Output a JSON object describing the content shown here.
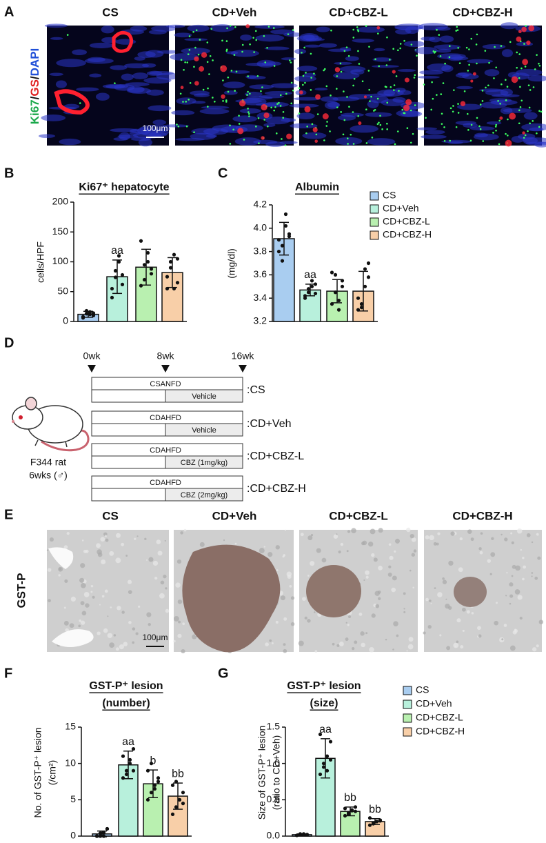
{
  "panel_labels": [
    "A",
    "B",
    "C",
    "D",
    "E",
    "F",
    "G"
  ],
  "panel_a": {
    "columns": [
      "CS",
      "CD+Veh",
      "CD+CBZ-L",
      "CD+CBZ-H"
    ],
    "stain_label": [
      "Ki67",
      "/",
      "GS",
      "/",
      "DAPI"
    ],
    "scale_bar": "100μm"
  },
  "panel_d": {
    "timepoints": [
      "0wk",
      "8wk",
      "16wk"
    ],
    "groups": [
      {
        "diet": "CSANFD",
        "treatment": "Vehicle",
        "label": ":CS"
      },
      {
        "diet": "CDAHFD",
        "treatment": "Vehicle",
        "label": ":CD+Veh"
      },
      {
        "diet": "CDAHFD",
        "treatment": "CBZ (1mg/kg)",
        "label": ":CD+CBZ-L"
      },
      {
        "diet": "CDAHFD",
        "treatment": "CBZ (2mg/kg)",
        "label": ":CD+CBZ-H"
      }
    ],
    "animal": [
      "F344 rat",
      "6wks (♂)"
    ]
  },
  "panel_e": {
    "columns": [
      "CS",
      "CD+Veh",
      "CD+CBZ-L",
      "CD+CBZ-H"
    ],
    "row_label": "GST-P",
    "scale_bar": "100μm"
  },
  "chart_data": [
    {
      "type": "bar",
      "title": [
        "Ki67⁺ hepatocyte"
      ],
      "y_label": [
        "cells/HPF"
      ],
      "ylim": [
        0,
        200
      ],
      "yticks": [
        0,
        50,
        100,
        150,
        200
      ],
      "series": [
        {
          "color": "#a9cdf0",
          "values": [
            12
          ],
          "errors": [
            5
          ],
          "points": [
            8,
            13,
            16,
            10,
            6,
            18,
            12,
            14
          ]
        },
        {
          "color": "#b8f0dc",
          "values": [
            75
          ],
          "errors": [
            28
          ],
          "points": [
            55,
            85,
            100,
            62,
            40,
            74,
            110,
            78
          ],
          "annotation": "aa"
        },
        {
          "color": "#b9f0b0",
          "values": [
            91
          ],
          "errors": [
            30
          ],
          "points": [
            60,
            95,
            115,
            80,
            135,
            70,
            100,
            88
          ]
        },
        {
          "color": "#f8cfa8",
          "values": [
            82
          ],
          "errors": [
            25
          ],
          "points": [
            55,
            100,
            112,
            65,
            75,
            90,
            55,
            105
          ]
        }
      ]
    },
    {
      "type": "bar",
      "title": [
        "Albumin"
      ],
      "y_label": [
        "(mg/dl)"
      ],
      "ylim": [
        3.2,
        4.2
      ],
      "yticks": [
        3.2,
        3.4,
        3.6,
        3.8,
        {
          "value": 4,
          "label": "4.0"
        },
        4.2
      ],
      "legend": "right",
      "series": [
        {
          "name": "CS",
          "color": "#a9cdf0",
          "values": [
            3.91
          ],
          "errors": [
            0.14
          ],
          "points": [
            3.8,
            3.85,
            4.02,
            3.95,
            3.9,
            3.72,
            4.12,
            3.93
          ]
        },
        {
          "name": "CD+Veh",
          "color": "#b8f0dc",
          "values": [
            3.47
          ],
          "errors": [
            0.05
          ],
          "points": [
            3.42,
            3.45,
            3.5,
            3.52,
            3.4,
            3.48,
            3.55,
            3.44
          ],
          "annotation": "aa"
        },
        {
          "name": "CD+CBZ-L",
          "color": "#b9f0b0",
          "values": [
            3.46
          ],
          "errors": [
            0.1
          ],
          "points": [
            3.35,
            3.6,
            3.38,
            3.5,
            3.62,
            3.45,
            3.3,
            3.55
          ]
        },
        {
          "name": "CD+CBZ-H",
          "color": "#f8cfa8",
          "values": [
            3.46
          ],
          "errors": [
            0.17
          ],
          "points": [
            3.3,
            3.35,
            3.65,
            3.58,
            3.4,
            3.32,
            3.5,
            3.7
          ]
        }
      ]
    },
    {
      "type": "bar",
      "title": [
        "GST-P⁺ lesion",
        "(number)"
      ],
      "y_label": [
        "No. of GST-P⁺ lesion",
        "(/cm²)"
      ],
      "ylim": [
        0,
        15
      ],
      "yticks": [
        0,
        5,
        10,
        15
      ],
      "series": [
        {
          "color": "#a9cdf0",
          "values": [
            0.3
          ],
          "errors": [
            0.4
          ],
          "points": [
            0,
            0,
            0.5,
            1,
            0,
            0.4,
            0,
            1
          ]
        },
        {
          "color": "#b8f0dc",
          "values": [
            9.8
          ],
          "errors": [
            1.9
          ],
          "points": [
            8,
            9,
            10,
            12,
            11,
            8.5,
            10.5,
            9
          ],
          "annotation": "aa"
        },
        {
          "color": "#b9f0b0",
          "values": [
            7.2
          ],
          "errors": [
            1.9
          ],
          "points": [
            5,
            6,
            7,
            8,
            9,
            10,
            6.5,
            7.5
          ],
          "annotation": "b"
        },
        {
          "color": "#f8cfa8",
          "values": [
            5.5
          ],
          "errors": [
            1.8
          ],
          "points": [
            3,
            4,
            5,
            6,
            7,
            7.5,
            5,
            4.5
          ],
          "annotation": "bb"
        }
      ]
    },
    {
      "type": "bar",
      "title": [
        "GST-P⁺ lesion",
        "(size)"
      ],
      "y_label": [
        "Size of GST-P⁺ lesion",
        "(ratio to CD+Veh)"
      ],
      "ylim": [
        0,
        1.5
      ],
      "yticks": [
        {
          "value": 0,
          "label": "0.0"
        },
        0.5,
        {
          "value": 1,
          "label": "1.0"
        },
        1.5
      ],
      "legend": "right",
      "series": [
        {
          "name": "CS",
          "color": "#a9cdf0",
          "values": [
            0.02
          ],
          "errors": [
            0.01
          ],
          "points": [
            0.01,
            0.02,
            0.03,
            0.02,
            0.01,
            0.03,
            0.02,
            0.02
          ]
        },
        {
          "name": "CD+Veh",
          "color": "#b8f0dc",
          "values": [
            1.07
          ],
          "errors": [
            0.27
          ],
          "points": [
            0.85,
            0.95,
            1.1,
            1.3,
            1.4,
            1.0,
            0.9,
            1.05
          ],
          "annotation": "aa"
        },
        {
          "name": "CD+CBZ-L",
          "color": "#b9f0b0",
          "values": [
            0.34
          ],
          "errors": [
            0.06
          ],
          "points": [
            0.28,
            0.3,
            0.35,
            0.4,
            0.38,
            0.32,
            0.36,
            0.34
          ],
          "annotation": "bb"
        },
        {
          "name": "CD+CBZ-H",
          "color": "#f8cfa8",
          "values": [
            0.2
          ],
          "errors": [
            0.04
          ],
          "points": [
            0.15,
            0.18,
            0.2,
            0.22,
            0.25,
            0.17,
            0.2,
            0.21
          ],
          "annotation": "bb"
        }
      ]
    }
  ]
}
